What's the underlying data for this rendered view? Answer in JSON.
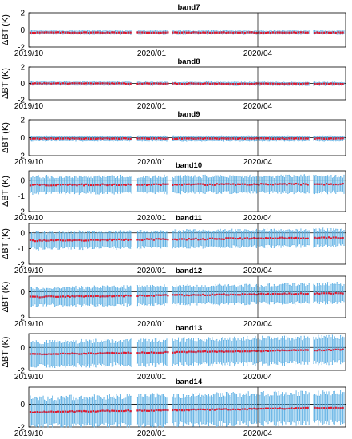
{
  "chart_data": [
    {
      "type": "line",
      "title": "band7",
      "ylabel": "ΔBT (K)",
      "ylim": [
        -2,
        2
      ],
      "yticks": [
        -2,
        0,
        2
      ],
      "xtick_labels": [
        "2019/10",
        "2020/01",
        "2020/04"
      ],
      "bias_start": -0.3,
      "bias_end": -0.3,
      "std_start": 0.18,
      "std_end": 0.18
    },
    {
      "type": "line",
      "title": "band8",
      "ylabel": "ΔBT (K)",
      "ylim": [
        -2,
        2
      ],
      "yticks": [
        -2,
        0,
        2
      ],
      "xtick_labels": [
        "2019/10",
        "2020/01",
        "2020/04"
      ],
      "bias_start": 0.0,
      "bias_end": -0.05,
      "std_start": 0.18,
      "std_end": 0.18
    },
    {
      "type": "line",
      "title": "band9",
      "ylabel": "ΔBT (K)",
      "ylim": [
        -2,
        2
      ],
      "yticks": [
        -2,
        0,
        2
      ],
      "xtick_labels": [
        "2019/10",
        "2020/01",
        "2020/04"
      ],
      "bias_start": -0.1,
      "bias_end": -0.1,
      "std_start": 0.25,
      "std_end": 0.25
    },
    {
      "type": "line",
      "title": "band10",
      "ylabel": "ΔBT (K)",
      "ylim": [
        -2,
        0.6
      ],
      "yticks": [
        -2,
        -1,
        0
      ],
      "xtick_labels": [
        "2019/10",
        "2020/01",
        "2020/04"
      ],
      "bias_start": -0.3,
      "bias_end": -0.25,
      "std_start": 0.5,
      "std_end": 0.5
    },
    {
      "type": "line",
      "title": "band11",
      "ylabel": "ΔBT (K)",
      "ylim": [
        -2,
        0.6
      ],
      "yticks": [
        -2,
        -1,
        0
      ],
      "xtick_labels": [
        "2019/10",
        "2020/01",
        "2020/04"
      ],
      "bias_start": -0.5,
      "bias_end": -0.3,
      "std_start": 0.5,
      "std_end": 0.5
    },
    {
      "type": "line",
      "title": "band12",
      "ylabel": "ΔBT (K)",
      "ylim": [
        -2,
        1.2
      ],
      "yticks": [
        -2,
        0
      ],
      "xtick_labels": [
        "2019/10",
        "2020/01",
        "2020/04"
      ],
      "bias_start": -0.4,
      "bias_end": -0.1,
      "std_start": 0.65,
      "std_end": 0.7
    },
    {
      "type": "line",
      "title": "band13",
      "ylabel": "ΔBT (K)",
      "ylim": [
        -2,
        1.2
      ],
      "yticks": [
        -2,
        0
      ],
      "xtick_labels": [
        "2019/10",
        "2020/01",
        "2020/04"
      ],
      "bias_start": -0.6,
      "bias_end": -0.2,
      "std_start": 1.0,
      "std_end": 1.1
    },
    {
      "type": "line",
      "title": "band14",
      "ylabel": "",
      "ylim": [
        -2,
        1.5
      ],
      "yticks": [
        -2,
        0
      ],
      "xtick_labels": [
        "2019/10",
        "2020/01",
        "2020/04"
      ],
      "bias_start": -0.7,
      "bias_end": -0.3,
      "std_start": 1.2,
      "std_end": 1.3
    }
  ]
}
